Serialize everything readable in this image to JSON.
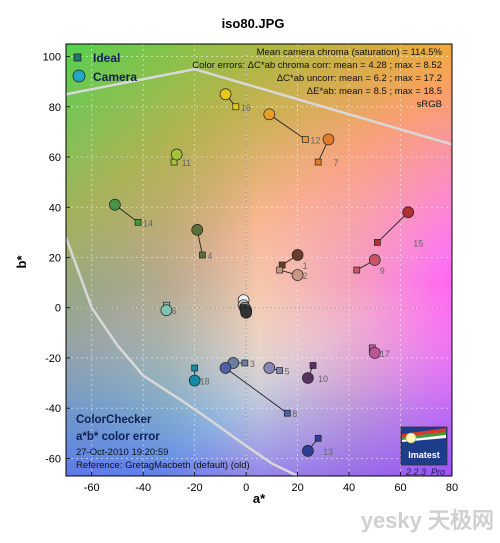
{
  "chart_data": {
    "type": "scatter",
    "title": "iso80.JPG",
    "xlabel": "a*",
    "ylabel": "b*",
    "xlim": [
      -70,
      80
    ],
    "ylim": [
      -67,
      105
    ],
    "xticks": [
      -60,
      -40,
      -20,
      0,
      20,
      40,
      60,
      80
    ],
    "yticks": [
      -60,
      -40,
      -20,
      0,
      20,
      40,
      60,
      80,
      100
    ],
    "grid": true,
    "legend_position": "top-left",
    "legend": [
      {
        "name": "Ideal",
        "marker": "square"
      },
      {
        "name": "Camera",
        "marker": "circle"
      }
    ],
    "stats": [
      "Mean camera chroma (saturation) = 114.5%",
      "Color errors: ΔC*ab chroma corr:  mean = 4.28 ;  max = 8.52",
      "ΔC*ab uncorr:  mean = 6.2 ;  max = 17.2",
      "ΔE*ab:  mean = 8.5 ;  max = 18.5",
      "sRGB"
    ],
    "info": [
      "ColorChecker",
      "a*b* color error",
      "27-Oct-2010 19:20:59",
      "Reference: GretagMacbeth (default) (old)"
    ],
    "patches": [
      {
        "id": "1",
        "ideal": [
          14,
          17
        ],
        "camera": [
          20,
          21
        ],
        "color": "#6b3d2e"
      },
      {
        "id": "2",
        "ideal": [
          13,
          15
        ],
        "camera": [
          20,
          13
        ],
        "color": "#c99684"
      },
      {
        "id": "3",
        "ideal": [
          -0.5,
          -22
        ],
        "camera": [
          -5,
          -22
        ],
        "color": "#6a7ea0"
      },
      {
        "id": "4",
        "ideal": [
          -17,
          21
        ],
        "camera": [
          -19,
          31
        ],
        "color": "#5c6f36"
      },
      {
        "id": "5",
        "ideal": [
          13,
          -25
        ],
        "camera": [
          9,
          -24
        ],
        "color": "#8886b4"
      },
      {
        "id": "6",
        "ideal": [
          -31,
          1
        ],
        "camera": [
          -31,
          -1
        ],
        "color": "#7fc3b0"
      },
      {
        "id": "7",
        "ideal": [
          28,
          58
        ],
        "camera": [
          32,
          67
        ],
        "color": "#e47b2a"
      },
      {
        "id": "8",
        "ideal": [
          16,
          -42
        ],
        "camera": [
          -8,
          -24
        ],
        "color": "#4d60a8"
      },
      {
        "id": "9",
        "ideal": [
          43,
          15
        ],
        "camera": [
          50,
          19
        ],
        "color": "#c85566"
      },
      {
        "id": "10",
        "ideal": [
          26,
          -23
        ],
        "camera": [
          24,
          -28
        ],
        "color": "#573062"
      },
      {
        "id": "11",
        "ideal": [
          -28,
          58
        ],
        "camera": [
          -27,
          61
        ],
        "color": "#a5c23b"
      },
      {
        "id": "12",
        "ideal": [
          23,
          67
        ],
        "camera": [
          9,
          77
        ],
        "color": "#e8a024"
      },
      {
        "id": "13",
        "ideal": [
          28,
          -52
        ],
        "camera": [
          24,
          -57
        ],
        "color": "#2d3f95"
      },
      {
        "id": "14",
        "ideal": [
          -42,
          34
        ],
        "camera": [
          -51,
          41
        ],
        "color": "#469545"
      },
      {
        "id": "15",
        "ideal": [
          51,
          26
        ],
        "camera": [
          63,
          38
        ],
        "color": "#b32f32"
      },
      {
        "id": "16",
        "ideal": [
          -4,
          80
        ],
        "camera": [
          -8,
          85
        ],
        "color": "#e8c81c"
      },
      {
        "id": "17",
        "ideal": [
          49,
          -16
        ],
        "camera": [
          50,
          -18
        ],
        "color": "#be5597"
      },
      {
        "id": "18",
        "ideal": [
          -20,
          -24
        ],
        "camera": [
          -20,
          -29
        ],
        "color": "#138ba6"
      },
      {
        "id": "W",
        "ideal": [
          -1,
          1
        ],
        "camera": [
          -1,
          3
        ],
        "color": "#f2f2f2"
      },
      {
        "id": "G1",
        "ideal": [
          -1,
          0
        ],
        "camera": [
          -1,
          1
        ],
        "color": "#c6c6c6"
      },
      {
        "id": "G2",
        "ideal": [
          -1,
          0
        ],
        "camera": [
          -0.5,
          0
        ],
        "color": "#a0a0a0"
      },
      {
        "id": "G3",
        "ideal": [
          -1,
          0
        ],
        "camera": [
          0,
          -1
        ],
        "color": "#7a7a7a"
      },
      {
        "id": "G4",
        "ideal": [
          -1,
          0
        ],
        "camera": [
          0,
          -1.5
        ],
        "color": "#555555"
      },
      {
        "id": "K",
        "ideal": [
          -1,
          0
        ],
        "camera": [
          0,
          -2
        ],
        "color": "#333333"
      }
    ],
    "gamut_boundary": [
      [
        -70,
        85
      ],
      [
        -20,
        95
      ],
      [
        80,
        65
      ]
    ],
    "gamut_boundary_lower": [
      [
        -70,
        28
      ],
      [
        -60,
        0
      ],
      [
        -50,
        -15
      ],
      [
        -40,
        -27
      ],
      [
        -25,
        -37
      ],
      [
        -15,
        -44
      ],
      [
        0,
        -55
      ],
      [
        10,
        -62
      ],
      [
        20,
        -67
      ]
    ],
    "logo": {
      "name": "Imatest",
      "version": "2.2.3",
      "edition": "Pro"
    },
    "watermark": "yesky 天极网"
  }
}
